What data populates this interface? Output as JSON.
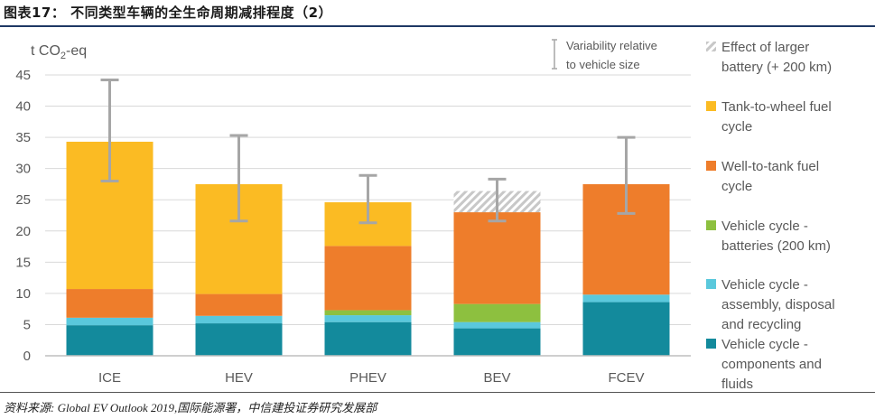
{
  "figure_title": "图表17：  不同类型车辆的全生命周期减排程度（2）",
  "source": "资料来源: Global EV Outlook 2019,国际能源署，中信建投证券研究发展部",
  "chart_data": {
    "type": "bar",
    "stacked": true,
    "ylabel_prefix": "t CO",
    "ylabel_sub": "2",
    "ylabel_suffix": "-eq",
    "ylim": [
      0,
      45
    ],
    "yticks": [
      0,
      5,
      10,
      15,
      20,
      25,
      30,
      35,
      40,
      45
    ],
    "grid": true,
    "legend_position": "right",
    "categories": [
      "ICE",
      "HEV",
      "PHEV",
      "BEV",
      "FCEV"
    ],
    "series": [
      {
        "key": "components",
        "name": [
          "Vehicle cycle -",
          "components and",
          "fluids"
        ],
        "color": "#138a9c",
        "values": [
          4.9,
          5.2,
          5.4,
          4.4,
          8.6
        ]
      },
      {
        "key": "assembly",
        "name": [
          "Vehicle cycle -",
          "assembly, disposal",
          "and recycling"
        ],
        "color": "#5ac8dc",
        "values": [
          1.2,
          1.2,
          1.1,
          1.0,
          1.2
        ]
      },
      {
        "key": "batteries",
        "name": [
          "Vehicle cycle -",
          "batteries (200 km)"
        ],
        "color": "#8dc03f",
        "values": [
          0,
          0,
          0.8,
          2.9,
          0
        ]
      },
      {
        "key": "wtt",
        "name": [
          "Well-to-tank fuel",
          "cycle"
        ],
        "color": "#ee7d2b",
        "values": [
          4.6,
          3.5,
          10.3,
          14.7,
          17.7
        ]
      },
      {
        "key": "ttw",
        "name": [
          "Tank-to-wheel fuel",
          "cycle"
        ],
        "color": "#fbbb23",
        "values": [
          23.6,
          17.6,
          7.0,
          0,
          0
        ]
      },
      {
        "key": "larger_battery",
        "name": [
          "Effect of larger",
          "battery (+ 200 km)"
        ],
        "color": "#c8c8c8",
        "pattern": "hatch",
        "values": [
          0,
          0,
          0,
          3.4,
          0
        ]
      }
    ],
    "error_bars": [
      {
        "low": 28.0,
        "high": 44.2
      },
      {
        "low": 21.6,
        "high": 35.3
      },
      {
        "low": 21.3,
        "high": 28.9
      },
      {
        "low": 21.6,
        "high": 28.3
      },
      {
        "low": 22.8,
        "high": 35.0
      }
    ],
    "variability_legend": [
      "Variability relative",
      "to vehicle size"
    ],
    "colors": {
      "axis": "#bfbfbf",
      "grid": "#d9d9d9",
      "error_bar": "#a6a6a6",
      "text": "#595959"
    }
  }
}
